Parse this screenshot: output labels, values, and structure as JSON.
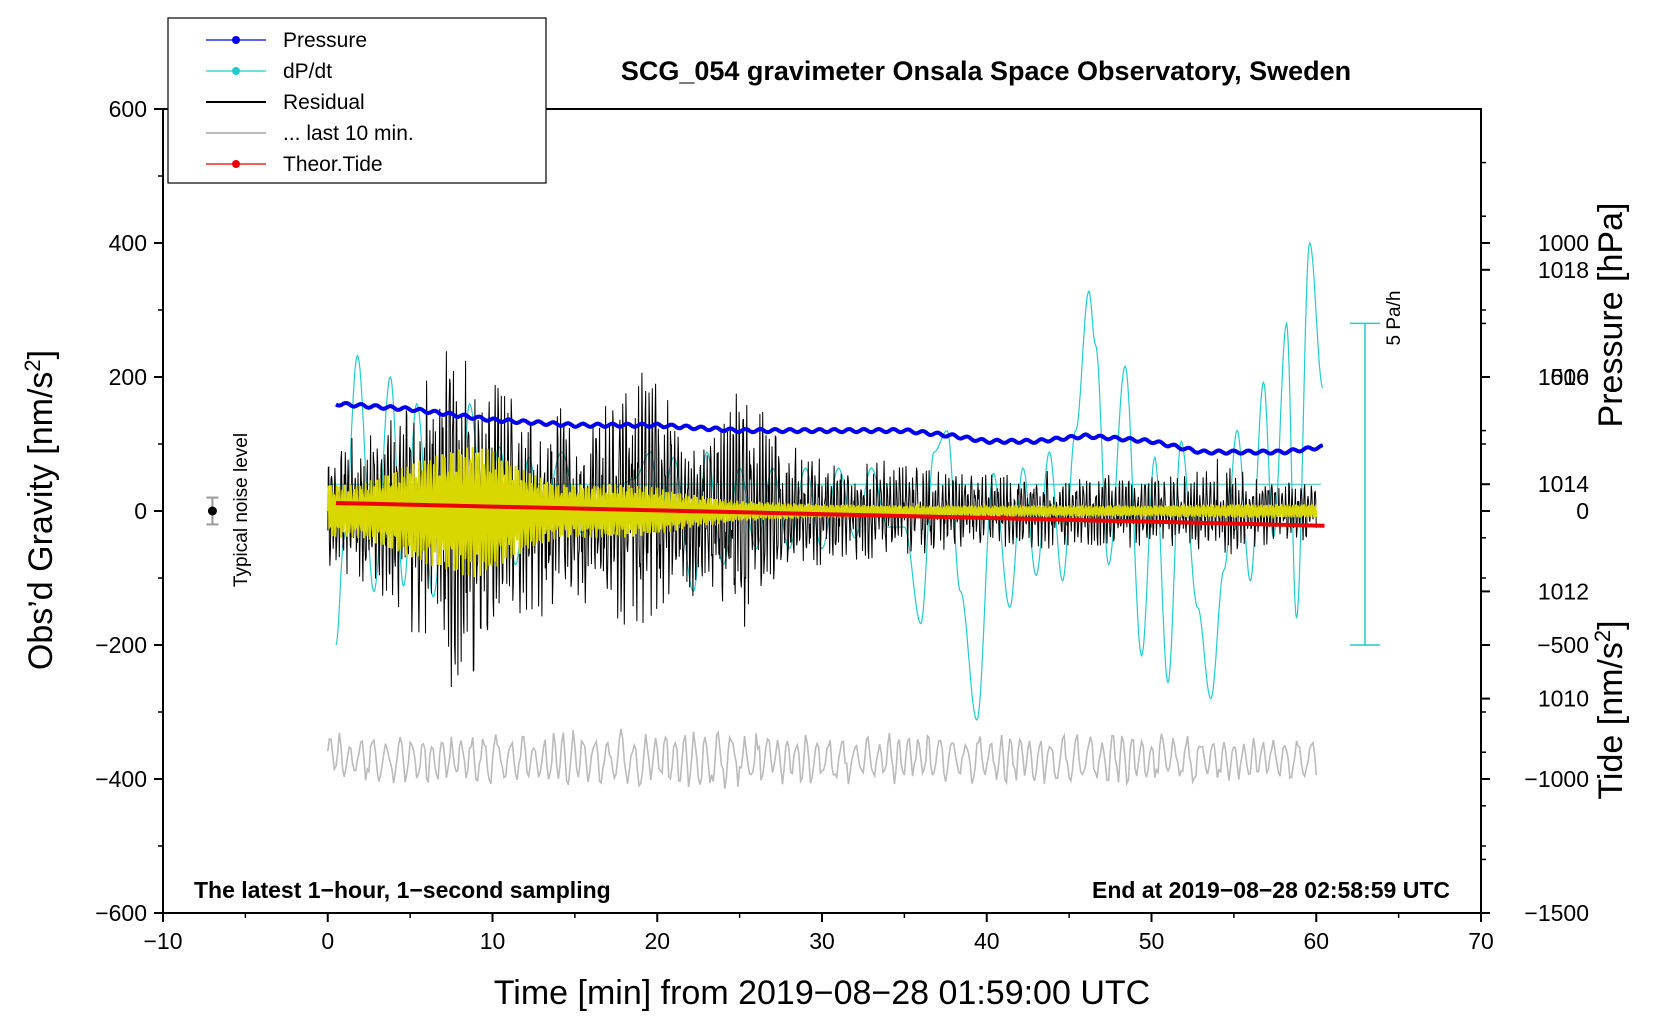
{
  "chart_data": {
    "type": "line",
    "title": "SCG_054 gravimeter Onsala Space Observatory, Sweden",
    "xlabel": "Time [min] from 2019−08−28 01:59:00 UTC",
    "ylabel_left": "Obs’d Gravity [nm/s",
    "ylabel_left_sup": "2",
    "ylabel_left_end": "]",
    "ylabel_right_pressure": "Pressure [hPa]",
    "ylabel_right_tide": "Tide [nm/s",
    "ylabel_right_tide_sup": "2",
    "ylabel_right_tide_end": "]",
    "xlim": [
      -10,
      70
    ],
    "ylim": [
      -600,
      600
    ],
    "pressure_lim": [
      1006.0,
      1021.0
    ],
    "tide_lim": [
      -1500,
      1500
    ],
    "x_ticks": [
      -10,
      0,
      10,
      20,
      30,
      40,
      50,
      60,
      70
    ],
    "x_tick_labels": [
      "−10",
      "0",
      "10",
      "20",
      "30",
      "40",
      "50",
      "60",
      "70"
    ],
    "y_ticks": [
      -600,
      -400,
      -200,
      0,
      200,
      400,
      600
    ],
    "y_tick_labels": [
      "−600",
      "−400",
      "−200",
      "0",
      "200",
      "400",
      "600"
    ],
    "pressure_ticks": [
      1010,
      1012,
      1014,
      1016,
      1018
    ],
    "pressure_tick_labels": [
      "1010",
      "1012",
      "1014",
      "1016",
      "1018"
    ],
    "tide_ticks": [
      -1500,
      -1000,
      -500,
      0,
      500,
      1000
    ],
    "tide_tick_labels": [
      "−1500",
      "−1000",
      "−500",
      "0",
      "500",
      "1000"
    ],
    "legend": [
      {
        "label": "Pressure",
        "color": "#0000ee",
        "marker": true
      },
      {
        "label": "dP/dt",
        "color": "#22cccc",
        "marker": true
      },
      {
        "label": "Residual",
        "color": "#000000",
        "marker": false
      },
      {
        "label": "... last 10 min.",
        "color": "#bbbbbb",
        "marker": false
      },
      {
        "label": "Theor.Tide",
        "color": "#ee0000",
        "marker": true
      }
    ],
    "series": [
      {
        "name": "Pressure",
        "unit": "hPa",
        "color": "#0000ee",
        "x": [
          0.5,
          5,
          10,
          15,
          20,
          25,
          30,
          35,
          38,
          40,
          43,
          46,
          50,
          53,
          55,
          57,
          58,
          60.5
        ],
        "values": [
          1015.5,
          1015.4,
          1015.2,
          1015.1,
          1015.1,
          1015.0,
          1015.0,
          1015.0,
          1014.9,
          1014.8,
          1014.8,
          1014.9,
          1014.8,
          1014.6,
          1014.6,
          1014.6,
          1014.6,
          1014.7
        ]
      },
      {
        "name": "dP/dt",
        "color": "#22cccc",
        "baseline_hpa": 1014,
        "scale_bar_label": "5 Pa/h",
        "scale_bar_hpa": [
          1011,
          1017
        ],
        "x": [
          0.5,
          1.0,
          1.8,
          2.8,
          3.8,
          4.6,
          5.4,
          6.4,
          7.2,
          8.0,
          8.6,
          9.6,
          10.4,
          11.4,
          12.2,
          13.0,
          14.2,
          15.4,
          16.6,
          17.8,
          18.6,
          19.6,
          20.2,
          21.0,
          22.2,
          23.0,
          24.0,
          25.0,
          26.0,
          27.0,
          28.0,
          29.0,
          30.0,
          31.0,
          32.0,
          33.0,
          34.0,
          35.0,
          36.0,
          36.8,
          37.6,
          38.4,
          39.4,
          40.4,
          41.4,
          42.2,
          43.0,
          43.8,
          44.6,
          45.4,
          46.2,
          46.6,
          47.4,
          48.4,
          49.4,
          50.2,
          51.0,
          51.8,
          52.8,
          53.6,
          54.4,
          55.2,
          56.0,
          56.8,
          57.4,
          58.2,
          58.8,
          59.6,
          60.4
        ],
        "values": [
          1011.0,
          1013.0,
          1016.4,
          1012.0,
          1016.0,
          1012.1,
          1015.5,
          1011.9,
          1014.0,
          1013.0,
          1015.5,
          1013.0,
          1014.7,
          1012.5,
          1014.5,
          1013.3,
          1014.6,
          1013.1,
          1013.3,
          1014.0,
          1014.1,
          1014.6,
          1013.5,
          1014.5,
          1012.0,
          1014.6,
          1012.5,
          1014.3,
          1012.8,
          1014.3,
          1012.8,
          1014.3,
          1012.8,
          1014.3,
          1013.0,
          1014.3,
          1013.2,
          1013.2,
          1011.4,
          1014.6,
          1015.0,
          1012.0,
          1009.6,
          1014.2,
          1011.7,
          1014.3,
          1012.3,
          1014.6,
          1012.2,
          1015.0,
          1017.6,
          1016.6,
          1012.5,
          1016.2,
          1010.8,
          1014.5,
          1010.3,
          1014.8,
          1011.7,
          1010.0,
          1012.4,
          1015.0,
          1012.2,
          1015.9,
          1013.0,
          1017.0,
          1011.5,
          1018.5,
          1015.8
        ]
      },
      {
        "name": "Residual",
        "unit": "nm/s2",
        "color": "#000000",
        "x": [
          0,
          2,
          4,
          6,
          7,
          8,
          9,
          10,
          12,
          14,
          16,
          18,
          19.5,
          21,
          23,
          25,
          28,
          32,
          36,
          40,
          44,
          48,
          52,
          54,
          56,
          58,
          60
        ],
        "envelope": [
          80,
          120,
          140,
          220,
          260,
          290,
          260,
          200,
          180,
          170,
          140,
          190,
          240,
          150,
          120,
          200,
          100,
          80,
          70,
          60,
          60,
          55,
          55,
          85,
          55,
          50,
          45
        ]
      },
      {
        "name": "Residual (yellow)",
        "color": "#d8d800",
        "x": [
          0,
          2,
          4,
          6,
          8,
          9,
          10,
          12,
          14,
          16,
          18,
          20,
          22,
          25,
          30,
          35,
          40,
          45,
          50,
          55,
          60
        ],
        "envelope": [
          40,
          40,
          60,
          80,
          95,
          100,
          90,
          60,
          40,
          40,
          40,
          35,
          25,
          15,
          10,
          8,
          8,
          8,
          8,
          10,
          10
        ]
      },
      {
        "name": "... last 10 min.",
        "color": "#bbbbbb",
        "offset": -370,
        "x": [
          0,
          5,
          10,
          15,
          20,
          22,
          24,
          30,
          40,
          50,
          60
        ],
        "envelope": [
          40,
          40,
          40,
          45,
          45,
          55,
          45,
          40,
          40,
          40,
          35
        ]
      },
      {
        "name": "Theor.Tide",
        "unit": "nm/s2",
        "color": "#ee0000",
        "x": [
          0.5,
          60.5
        ],
        "values": [
          30,
          -55
        ]
      }
    ],
    "noise_marker": {
      "x": -7,
      "y": 0,
      "error": 20,
      "label": "Typical noise level"
    },
    "footer_left": "The latest 1−hour, 1−second sampling",
    "footer_right": "End at 2019−08−28 02:58:59 UTC"
  }
}
